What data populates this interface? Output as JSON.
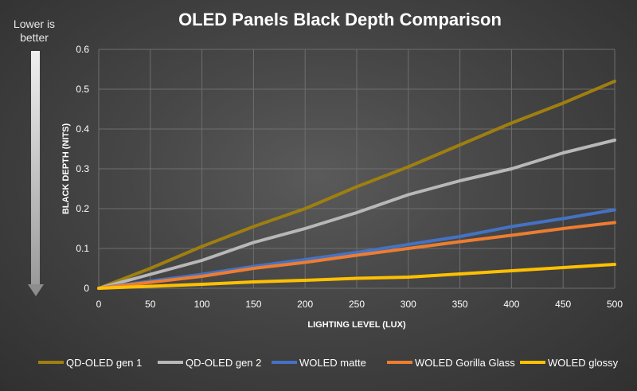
{
  "side_note": {
    "line1": "Lower is",
    "line2": "better"
  },
  "chart_data": {
    "type": "line",
    "title": "OLED Panels Black Depth Comparison",
    "xlabel": "LIGHTING LEVEL (LUX)",
    "ylabel": "BLACK DEPTH (NITS)",
    "xlim": [
      0,
      500
    ],
    "ylim": [
      0,
      0.6
    ],
    "x_ticks": [
      "0",
      "50",
      "100",
      "150",
      "200",
      "250",
      "300",
      "350",
      "400",
      "450",
      "500"
    ],
    "y_ticks": [
      "0",
      "0.1",
      "0.2",
      "0.3",
      "0.4",
      "0.5",
      "0.6"
    ],
    "grid": true,
    "legend_position": "bottom",
    "x": [
      0,
      50,
      100,
      150,
      200,
      250,
      300,
      350,
      400,
      450,
      500
    ],
    "series": [
      {
        "name": "QD-OLED gen 1",
        "color": "#9e7f10",
        "values": [
          0,
          0.05,
          0.105,
          0.155,
          0.2,
          0.255,
          0.305,
          0.36,
          0.415,
          0.465,
          0.52
        ]
      },
      {
        "name": "QD-OLED gen 2",
        "color": "#b8b8b8",
        "values": [
          0,
          0.035,
          0.07,
          0.115,
          0.15,
          0.19,
          0.235,
          0.27,
          0.3,
          0.34,
          0.372
        ]
      },
      {
        "name": "WOLED matte",
        "color": "#4472c4",
        "values": [
          0,
          0.018,
          0.035,
          0.055,
          0.072,
          0.09,
          0.11,
          0.13,
          0.155,
          0.175,
          0.197
        ]
      },
      {
        "name": "WOLED Gorilla Glass",
        "color": "#ed7d31",
        "values": [
          0,
          0.015,
          0.03,
          0.05,
          0.065,
          0.083,
          0.1,
          0.117,
          0.133,
          0.15,
          0.165
        ]
      },
      {
        "name": "WOLED glossy",
        "color": "#ffc000",
        "values": [
          0,
          0.005,
          0.01,
          0.016,
          0.02,
          0.025,
          0.028,
          0.036,
          0.044,
          0.052,
          0.06
        ]
      }
    ]
  }
}
